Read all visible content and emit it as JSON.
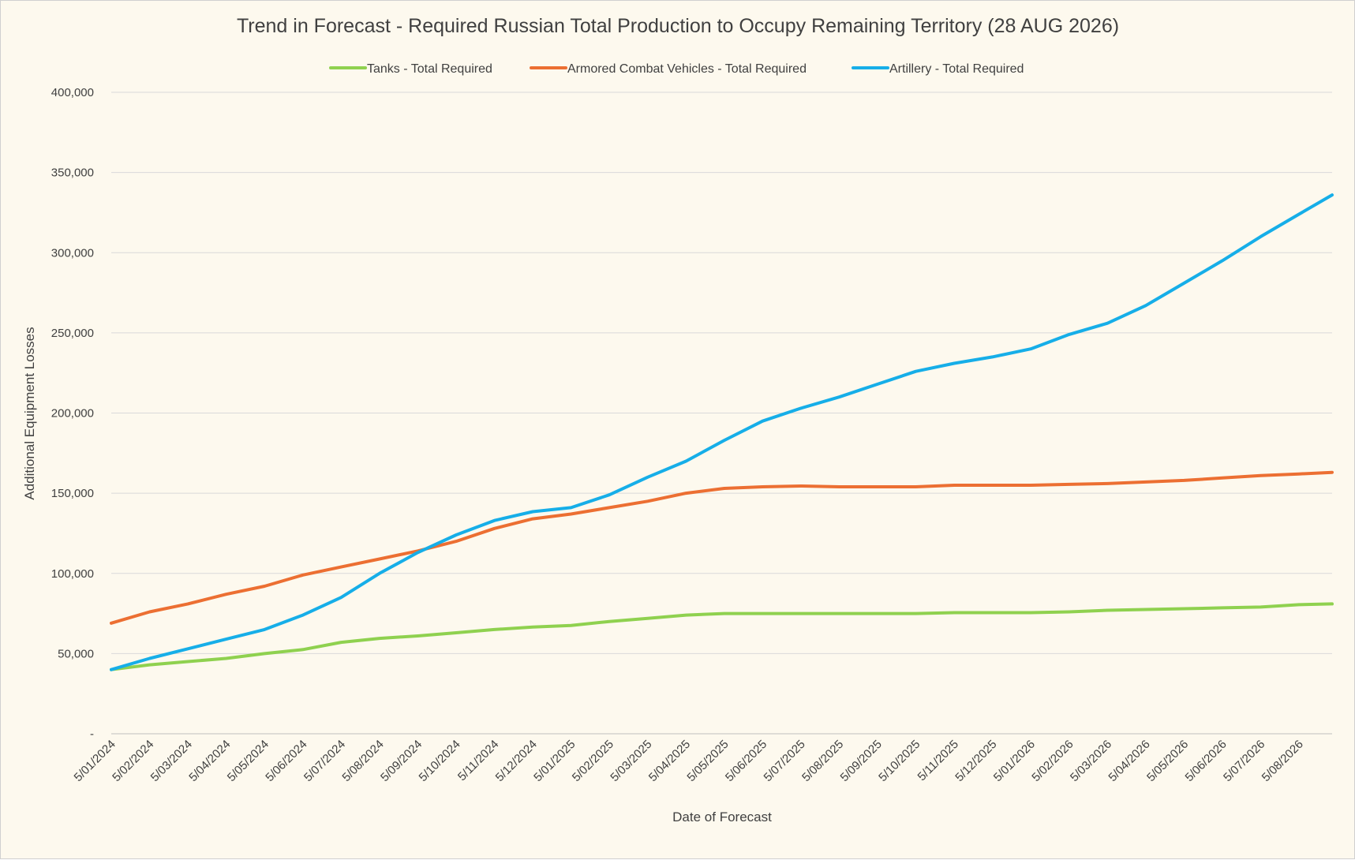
{
  "chart_data": {
    "type": "line",
    "title": "Trend in Forecast - Required Russian Total Production to Occupy Remaining Territory (28 AUG 2026)",
    "xlabel": "Date of Forecast",
    "ylabel": "Additional Equipment Losses",
    "ylim": [
      0,
      400000
    ],
    "y_ticks": [
      {
        "value": 0,
        "label": "-"
      },
      {
        "value": 50000,
        "label": "50,000"
      },
      {
        "value": 100000,
        "label": "100,000"
      },
      {
        "value": 150000,
        "label": "150,000"
      },
      {
        "value": 200000,
        "label": "200,000"
      },
      {
        "value": 250000,
        "label": "250,000"
      },
      {
        "value": 300000,
        "label": "300,000"
      },
      {
        "value": 350000,
        "label": "350,000"
      },
      {
        "value": 400000,
        "label": "400,000"
      }
    ],
    "x_ticks": [
      "5/01/2024",
      "5/02/2024",
      "5/03/2024",
      "5/04/2024",
      "5/05/2024",
      "5/06/2024",
      "5/07/2024",
      "5/08/2024",
      "5/09/2024",
      "5/10/2024",
      "5/11/2024",
      "5/12/2024",
      "5/01/2025",
      "5/02/2025",
      "5/03/2025",
      "5/04/2025",
      "5/05/2025",
      "5/06/2025",
      "5/07/2025",
      "5/08/2025",
      "5/09/2025",
      "5/10/2025",
      "5/11/2025",
      "5/12/2025",
      "5/01/2026",
      "5/02/2026",
      "5/03/2026",
      "5/04/2026",
      "5/05/2026",
      "5/06/2026",
      "5/07/2026",
      "5/08/2026"
    ],
    "x_end": "28/08/2026",
    "grid": true,
    "legend_position": "top",
    "x": [
      "5/01/2024",
      "5/02/2024",
      "5/03/2024",
      "5/04/2024",
      "5/05/2024",
      "5/06/2024",
      "5/07/2024",
      "5/08/2024",
      "5/09/2024",
      "5/10/2024",
      "5/11/2024",
      "5/12/2024",
      "5/01/2025",
      "5/02/2025",
      "5/03/2025",
      "5/04/2025",
      "5/05/2025",
      "5/06/2025",
      "5/07/2025",
      "5/08/2025",
      "5/09/2025",
      "5/10/2025",
      "5/11/2025",
      "5/12/2025",
      "5/01/2026",
      "5/02/2026",
      "5/03/2026",
      "5/04/2026",
      "5/05/2026",
      "5/06/2026",
      "5/07/2026",
      "5/08/2026",
      "28/08/2026"
    ],
    "series": [
      {
        "name": "Tanks - Total Required",
        "color": "#8fd14f",
        "values": [
          40000,
          43000,
          45000,
          47000,
          50000,
          52500,
          57000,
          59500,
          61000,
          63000,
          65000,
          66500,
          67500,
          70000,
          72000,
          74000,
          75000,
          75000,
          75000,
          75000,
          75000,
          75000,
          75500,
          75500,
          75500,
          76000,
          77000,
          77500,
          78000,
          78500,
          79000,
          80500,
          81000
        ]
      },
      {
        "name": "Armored Combat Vehicles - Total Required",
        "color": "#ec6f32",
        "values": [
          69000,
          76000,
          81000,
          87000,
          92000,
          99000,
          104000,
          109000,
          114000,
          120000,
          128000,
          134000,
          137000,
          141000,
          145000,
          150000,
          153000,
          154000,
          154500,
          154000,
          154000,
          154000,
          155000,
          155000,
          155000,
          155500,
          156000,
          157000,
          158000,
          159500,
          161000,
          162000,
          163000
        ]
      },
      {
        "name": "Artillery - Total Required",
        "color": "#16aee8",
        "values": [
          40000,
          47000,
          53000,
          59000,
          65000,
          74000,
          85000,
          100000,
          113000,
          124000,
          133000,
          138500,
          141000,
          149000,
          160000,
          170000,
          183000,
          195000,
          203000,
          210000,
          218000,
          226000,
          231000,
          235000,
          240000,
          249000,
          256000,
          267000,
          281000,
          295000,
          310000,
          324000,
          336000
        ]
      }
    ]
  }
}
